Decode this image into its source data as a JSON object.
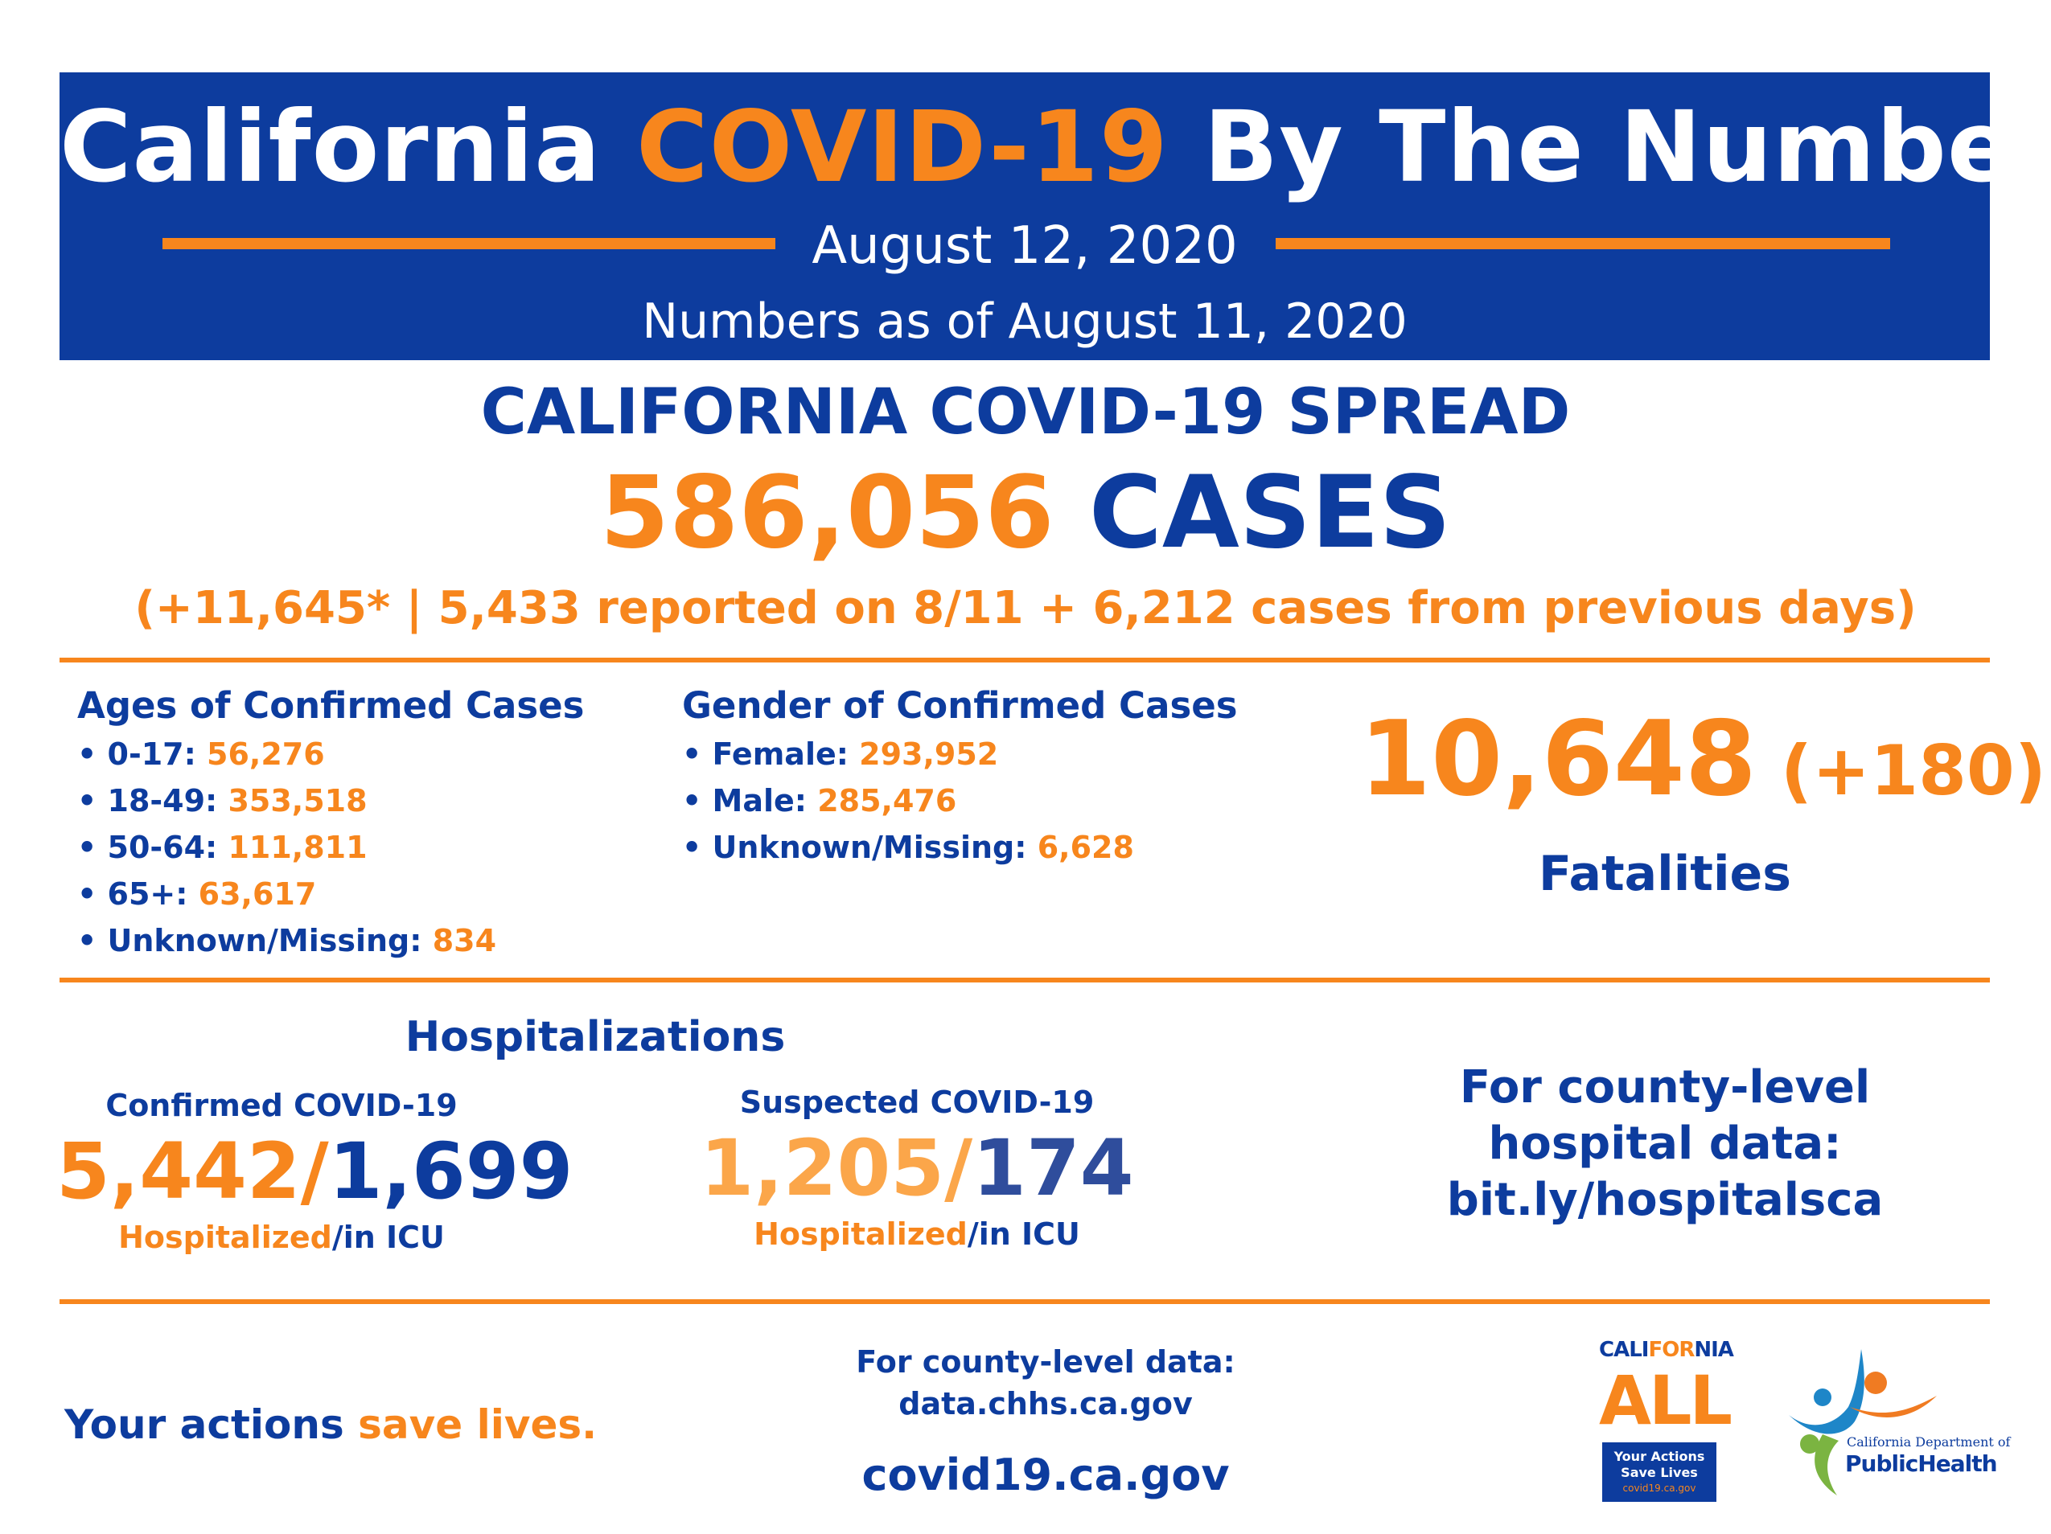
{
  "header": {
    "title_part1": "California ",
    "title_highlight": "COVID-19",
    "title_part2": " By The Numbers",
    "date": "August 12, 2020",
    "as_of": "Numbers as of August 11, 2020"
  },
  "spread": {
    "heading": "CALIFORNIA COVID-19 SPREAD",
    "cases_number": "586,056",
    "cases_label": " CASES",
    "detail": "(+11,645* | 5,433 reported on 8/11 + 6,212 cases from previous days)"
  },
  "ages": {
    "title": "Ages of Confirmed Cases",
    "items": [
      {
        "label": "• 0-17: ",
        "value": "56,276"
      },
      {
        "label": "• 18-49: ",
        "value": "353,518"
      },
      {
        "label": "• 50-64: ",
        "value": "111,811"
      },
      {
        "label": "• 65+: ",
        "value": "63,617"
      },
      {
        "label": "• Unknown/Missing: ",
        "value": "834"
      }
    ]
  },
  "gender": {
    "title": "Gender of Confirmed Cases",
    "items": [
      {
        "label": "• Female: ",
        "value": "293,952"
      },
      {
        "label": "• Male: ",
        "value": "285,476"
      },
      {
        "label": "• Unknown/Missing: ",
        "value": "6,628"
      }
    ]
  },
  "fatalities": {
    "number": "10,648",
    "change": " (+180)",
    "label": "Fatalities"
  },
  "hospitalizations": {
    "title": "Hospitalizations",
    "confirmed": {
      "subtitle": "Confirmed COVID-19",
      "hospitalized": "5,442/",
      "icu": "1,699",
      "cap_hosp": "Hospitalized",
      "cap_icu": "/in ICU"
    },
    "suspected": {
      "subtitle": "Suspected COVID-19",
      "hospitalized": "1,205/",
      "icu": "174",
      "cap_hosp": "Hospitalized",
      "cap_icu": "/in ICU"
    },
    "county_note_l1": "For county-level",
    "county_note_l2": "hospital data:",
    "county_note_l3": "bit.ly/hospitalsca"
  },
  "footer": {
    "actions_part1": "Your actions ",
    "actions_part2": "save lives.",
    "county_data_l1": "For county-level data:",
    "county_data_l2": "data.chhs.ca.gov",
    "site": "covid19.ca.gov"
  },
  "logos": {
    "ca_all_word_1": "CALI",
    "ca_all_word_2": "FOR",
    "ca_all_word_3": "NIA",
    "ca_all_main": "ALL",
    "ca_all_box_l1": "Your Actions",
    "ca_all_box_l2": "Save Lives",
    "ca_all_box_l3": "covid19.ca.gov",
    "cdph_org": "California Department of",
    "cdph_name": "PublicHealth"
  },
  "colors": {
    "navy": "#0d3c9e",
    "orange": "#f7861d"
  }
}
